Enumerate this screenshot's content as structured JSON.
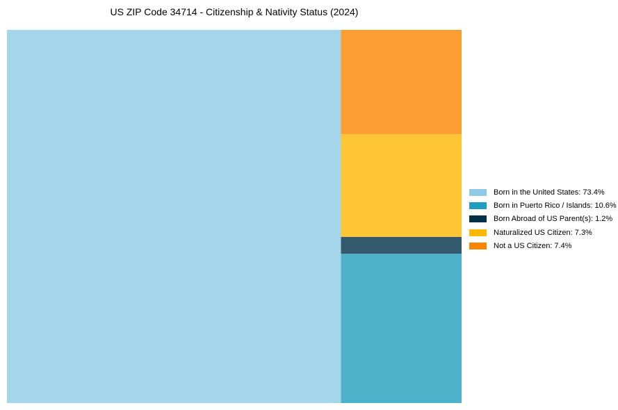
{
  "chart_data": {
    "type": "treemap",
    "title": "US ZIP Code 34714 - Citizenship & Nativity Status (2024)",
    "unit": "%",
    "series": [
      {
        "name": "Born in the United States",
        "value": 73.4,
        "color": "#8ecae6"
      },
      {
        "name": "Born in Puerto Rico / Islands",
        "value": 10.6,
        "color": "#219ebc"
      },
      {
        "name": "Born Abroad of US Parent(s)",
        "value": 1.2,
        "color": "#023047"
      },
      {
        "name": "Naturalized US Citizen",
        "value": 7.3,
        "color": "#ffb703"
      },
      {
        "name": "Not a US Citizen",
        "value": 7.4,
        "color": "#fb8500"
      }
    ],
    "legend": {
      "position": "right",
      "entries": [
        "Born in the United States: 73.4%",
        "Born in Puerto Rico / Islands: 10.6%",
        "Born Abroad of US Parent(s): 1.2%",
        "Naturalized US Citizen: 7.3%",
        "Not a US Citizen: 7.4%"
      ]
    }
  }
}
